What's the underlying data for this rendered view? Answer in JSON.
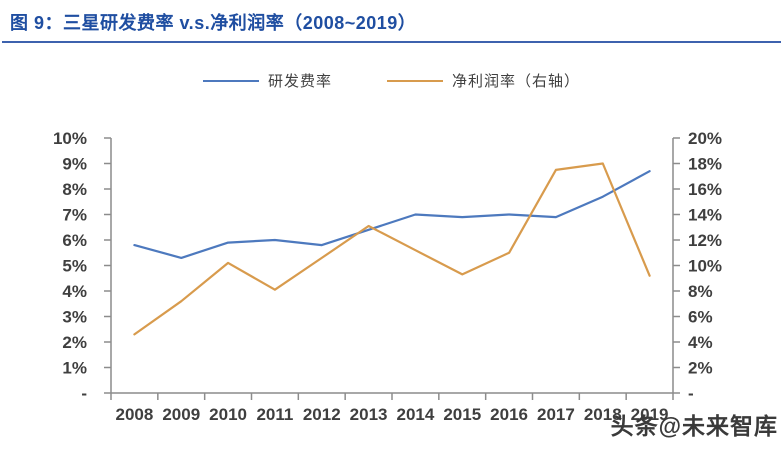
{
  "page": {
    "title": "图 9：三星研发费率 v.s.净利润率（2008~2019）",
    "watermark": "头条@未来智库"
  },
  "legend": {
    "items": [
      {
        "label": "研发费率"
      },
      {
        "label": "净利润率（右轴）"
      }
    ]
  },
  "colors": {
    "title_blue": "#1f4ea1",
    "divider_blue": "#3d62ae",
    "series_blue": "#4d79be",
    "series_orange": "#d89b4d",
    "axis_gray": "#8c8c8c",
    "tick_text": "#3f3f3f",
    "watermark_text": "#3a3a3a"
  },
  "chart_data": {
    "type": "line",
    "title": "三星研发费率 v.s.净利润率（2008~2019）",
    "categories": [
      "2008",
      "2009",
      "2010",
      "2011",
      "2012",
      "2013",
      "2014",
      "2015",
      "2016",
      "2017",
      "2018",
      "2019"
    ],
    "series": [
      {
        "name": "研发费率",
        "axis": "left",
        "color": "#4d79be",
        "values": [
          5.8,
          5.3,
          5.9,
          6.0,
          5.8,
          6.4,
          7.0,
          6.9,
          7.0,
          6.9,
          7.7,
          8.7
        ]
      },
      {
        "name": "净利润率（右轴）",
        "axis": "right",
        "color": "#d89b4d",
        "values": [
          4.6,
          7.2,
          10.2,
          8.1,
          10.6,
          13.1,
          11.2,
          9.3,
          11.0,
          17.5,
          18.0,
          9.2
        ]
      }
    ],
    "left_axis": {
      "min": 0,
      "max": 10,
      "step": 1,
      "tick_labels": [
        "-",
        "1%",
        "2%",
        "3%",
        "4%",
        "5%",
        "6%",
        "7%",
        "8%",
        "9%",
        "10%"
      ]
    },
    "right_axis": {
      "min": 0,
      "max": 20,
      "step": 2,
      "tick_labels": [
        "-",
        "2%",
        "4%",
        "6%",
        "8%",
        "10%",
        "12%",
        "14%",
        "16%",
        "18%",
        "20%"
      ]
    },
    "grid": false,
    "legend_position": "top",
    "values_unit": "percent"
  }
}
